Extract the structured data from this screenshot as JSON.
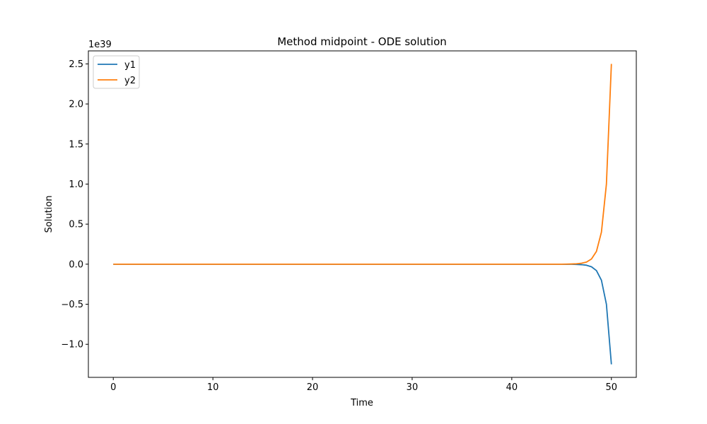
{
  "chart_data": {
    "type": "line",
    "title": "Method midpoint - ODE solution",
    "xlabel": "Time",
    "ylabel": "Solution",
    "y_offset_label": "1e39",
    "xlim": [
      -2.5,
      52.5
    ],
    "ylim": [
      -1.4125,
      2.6625
    ],
    "x_ticks": [
      0,
      10,
      20,
      30,
      40,
      50
    ],
    "x_tick_labels": [
      "0",
      "10",
      "20",
      "30",
      "40",
      "50"
    ],
    "y_ticks": [
      -1.0,
      -0.5,
      0.0,
      0.5,
      1.0,
      1.5,
      2.0,
      2.5
    ],
    "y_tick_labels": [
      "−1.0",
      "−0.5",
      "0.0",
      "0.5",
      "1.0",
      "1.5",
      "2.0",
      "2.5"
    ],
    "grid": false,
    "legend_position": "top-left",
    "x": [
      0,
      5,
      10,
      15,
      20,
      25,
      30,
      35,
      40,
      45,
      45.5,
      46,
      46.5,
      47,
      47.5,
      48,
      48.5,
      49,
      49.5,
      50
    ],
    "series": [
      {
        "name": "y1",
        "color": "#1f77b4",
        "values": [
          0,
          0,
          0,
          0,
          0,
          0,
          0,
          0,
          0,
          0,
          -0.0005,
          -0.0013,
          -0.003,
          -0.006,
          -0.013,
          -0.032,
          -0.08,
          -0.2,
          -0.5,
          -1.25
        ]
      },
      {
        "name": "y2",
        "color": "#ff7f0e",
        "values": [
          0,
          0,
          0,
          0,
          0,
          0,
          0,
          0,
          0,
          0,
          0.0012,
          0.0025,
          0.005,
          0.012,
          0.026,
          0.065,
          0.16,
          0.4,
          1.0,
          2.5
        ]
      }
    ]
  }
}
